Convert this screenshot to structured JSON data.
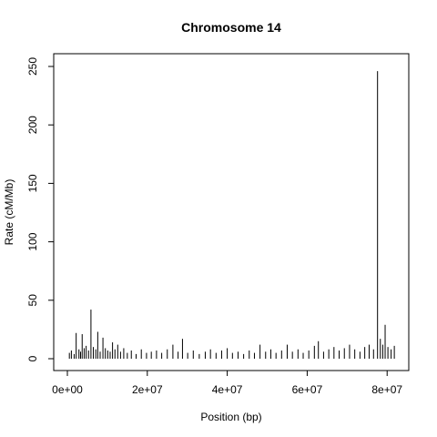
{
  "chart_data": {
    "type": "line",
    "subtype": "histogram-like vertical spikes",
    "title": "Chromosome 14",
    "xlabel": "Position (bp)",
    "ylabel": "Rate (cM/Mb)",
    "xlim": [
      0,
      82000000
    ],
    "ylim": [
      0,
      250
    ],
    "x_ticks": [
      {
        "value": 0,
        "label": "0e+00"
      },
      {
        "value": 20000000,
        "label": "2e+07"
      },
      {
        "value": 40000000,
        "label": "4e+07"
      },
      {
        "value": 60000000,
        "label": "6e+07"
      },
      {
        "value": 80000000,
        "label": "8e+07"
      }
    ],
    "y_ticks": [
      {
        "value": 0,
        "label": "0"
      },
      {
        "value": 50,
        "label": "50"
      },
      {
        "value": 100,
        "label": "100"
      },
      {
        "value": 150,
        "label": "150"
      },
      {
        "value": 200,
        "label": "200"
      },
      {
        "value": 250,
        "label": "250"
      }
    ],
    "grid": false,
    "series": [
      {
        "color": "#000000",
        "x": [
          500000,
          1000000,
          1700000,
          2200000,
          2900000,
          3300000,
          3700000,
          4200000,
          4700000,
          5300000,
          5900000,
          6500000,
          7100000,
          7600000,
          8200000,
          8900000,
          9500000,
          10100000,
          10700000,
          11300000,
          11900000,
          12600000,
          13300000,
          14100000,
          15000000,
          16000000,
          17200000,
          18500000,
          19800000,
          21000000,
          22300000,
          23600000,
          25000000,
          26400000,
          27700000,
          28800000,
          30100000,
          31500000,
          33000000,
          34500000,
          35800000,
          37200000,
          38600000,
          40000000,
          41300000,
          42700000,
          44100000,
          45500000,
          46800000,
          48200000,
          49600000,
          50900000,
          52200000,
          53600000,
          55000000,
          56300000,
          57700000,
          59000000,
          60400000,
          61800000,
          62800000,
          64100000,
          65400000,
          66700000,
          68000000,
          69300000,
          70600000,
          71900000,
          73200000,
          74400000,
          75500000,
          76600000,
          77600000,
          78300000,
          78900000,
          79500000,
          80200000,
          81000000,
          81800000
        ],
        "y": [
          5,
          7,
          4,
          22,
          8,
          6,
          21,
          9,
          11,
          7,
          42,
          10,
          8,
          23,
          6,
          18,
          9,
          7,
          6,
          14,
          8,
          12,
          6,
          9,
          5,
          7,
          4,
          8,
          5,
          6,
          7,
          5,
          8,
          12,
          6,
          17,
          5,
          7,
          4,
          6,
          8,
          5,
          7,
          9,
          5,
          6,
          4,
          7,
          5,
          12,
          6,
          8,
          5,
          7,
          12,
          6,
          8,
          5,
          7,
          11,
          15,
          6,
          8,
          10,
          7,
          9,
          12,
          8,
          6,
          10,
          12,
          8,
          246,
          17,
          12,
          29,
          10,
          8,
          11
        ]
      }
    ]
  }
}
